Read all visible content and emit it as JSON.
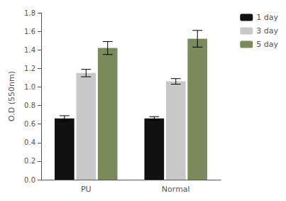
{
  "chart_data": {
    "type": "bar",
    "categories": [
      "PU",
      "Normal"
    ],
    "series": [
      {
        "name": "1 day",
        "color": "#111111",
        "values": [
          0.66,
          0.66
        ],
        "errors": [
          0.03,
          0.02
        ]
      },
      {
        "name": "3 day",
        "color": "#c8c8c8",
        "values": [
          1.15,
          1.06
        ],
        "errors": [
          0.04,
          0.03
        ]
      },
      {
        "name": "5 day",
        "color": "#7a8a5a",
        "values": [
          1.42,
          1.52
        ],
        "errors": [
          0.07,
          0.09
        ]
      }
    ],
    "ylabel": "O.D (550nm)",
    "ylim": [
      0.0,
      1.8
    ],
    "yticks": [
      {
        "value": 0.0,
        "label": "0.0"
      },
      0.2,
      0.4,
      0.6,
      0.8,
      {
        "value": 1.0,
        "label": "1.0"
      },
      1.2,
      1.4,
      1.6,
      1.8
    ],
    "grid": false,
    "legend": "right"
  }
}
